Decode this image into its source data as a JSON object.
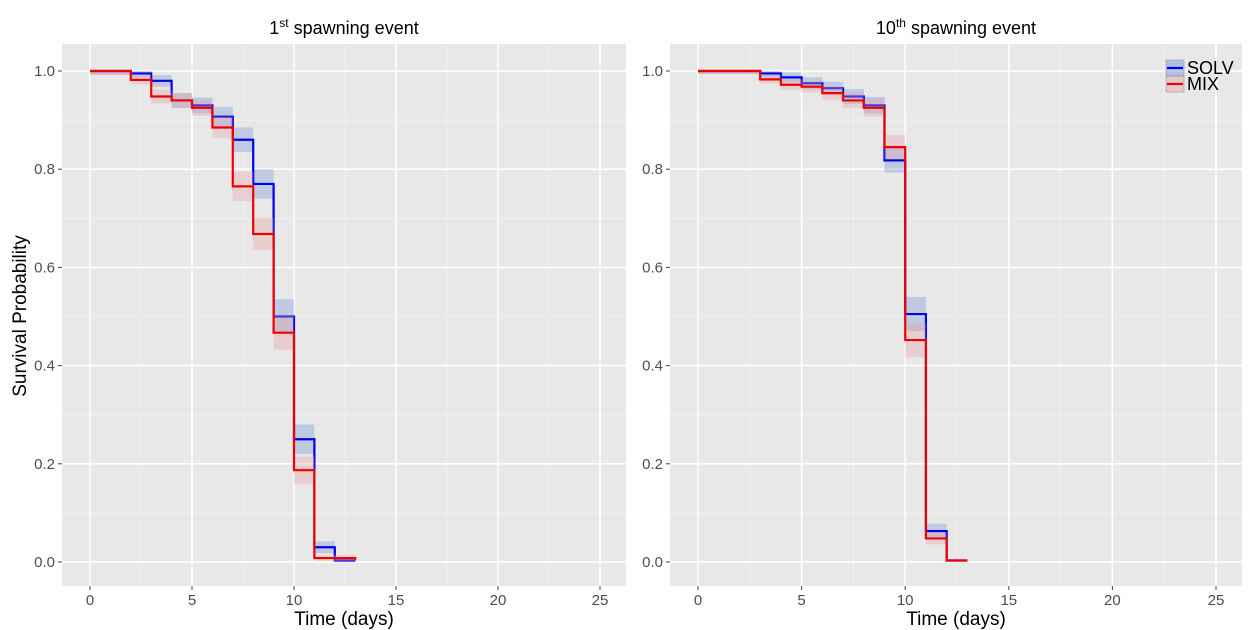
{
  "figure": {
    "ylabel": "Survival Probability",
    "legend": {
      "placement": "top-right of right panel",
      "entries": [
        {
          "label": "SOLV",
          "color": "#0000ee"
        },
        {
          "label": "MIX",
          "color": "#ee0000"
        }
      ]
    }
  },
  "chart_data": [
    {
      "type": "line",
      "step": true,
      "title": {
        "base": "1",
        "sup": "st",
        "rest": " spawning event"
      },
      "xlabel": "Time (days)",
      "ylabel": "Survival Probability",
      "xlim": [
        0,
        25
      ],
      "ylim": [
        0,
        1
      ],
      "xticks": [
        "0",
        "5",
        "10",
        "15",
        "20",
        "25"
      ],
      "yticks": [
        "0.0",
        "0.2",
        "0.4",
        "0.6",
        "0.8",
        "1.0"
      ],
      "grid": true,
      "series": [
        {
          "name": "SOLV",
          "color": "#0000ee",
          "band_color": "#6f8fd8",
          "x": [
            0,
            2,
            3,
            4,
            5,
            6,
            7,
            8,
            9,
            10,
            11,
            12,
            13
          ],
          "y": [
            1.0,
            0.995,
            0.98,
            0.94,
            0.93,
            0.907,
            0.86,
            0.77,
            0.5,
            0.25,
            0.03,
            0.003,
            0.003
          ],
          "ci": [
            0.008,
            0.008,
            0.012,
            0.015,
            0.016,
            0.02,
            0.025,
            0.03,
            0.035,
            0.03,
            0.012,
            0.002,
            0.002
          ]
        },
        {
          "name": "MIX",
          "color": "#ee0000",
          "band_color": "#e8a0a0",
          "x": [
            0,
            2,
            3,
            4,
            5,
            6,
            7,
            8,
            9,
            10,
            11,
            12,
            13
          ],
          "y": [
            1.0,
            0.982,
            0.948,
            0.94,
            0.925,
            0.885,
            0.765,
            0.668,
            0.467,
            0.187,
            0.008,
            0.008,
            0.003
          ],
          "ci": [
            0.008,
            0.01,
            0.014,
            0.015,
            0.016,
            0.022,
            0.03,
            0.033,
            0.035,
            0.028,
            0.006,
            0.006,
            0.002
          ]
        }
      ]
    },
    {
      "type": "line",
      "step": true,
      "title": {
        "base": "10",
        "sup": "th",
        "rest": " spawning event"
      },
      "xlabel": "Time (days)",
      "ylabel": "",
      "xlim": [
        0,
        25
      ],
      "ylim": [
        0,
        1
      ],
      "xticks": [
        "0",
        "5",
        "10",
        "15",
        "20",
        "25"
      ],
      "yticks": [
        "0.0",
        "0.2",
        "0.4",
        "0.6",
        "0.8",
        "1.0"
      ],
      "grid": true,
      "series": [
        {
          "name": "SOLV",
          "color": "#0000ee",
          "band_color": "#6f8fd8",
          "x": [
            0,
            3,
            4,
            5,
            6,
            7,
            8,
            9,
            10,
            11,
            12,
            13
          ],
          "y": [
            1.0,
            0.995,
            0.987,
            0.975,
            0.965,
            0.948,
            0.93,
            0.818,
            0.505,
            0.063,
            0.003,
            0.003
          ],
          "ci": [
            0.006,
            0.008,
            0.01,
            0.012,
            0.013,
            0.015,
            0.017,
            0.025,
            0.035,
            0.015,
            0.002,
            0.002
          ]
        },
        {
          "name": "MIX",
          "color": "#ee0000",
          "band_color": "#e8a0a0",
          "x": [
            0,
            3,
            4,
            5,
            6,
            7,
            8,
            9,
            10,
            11,
            12,
            13
          ],
          "y": [
            1.0,
            0.983,
            0.972,
            0.968,
            0.955,
            0.94,
            0.925,
            0.845,
            0.452,
            0.048,
            0.003,
            0.003
          ],
          "ci": [
            0.006,
            0.009,
            0.011,
            0.012,
            0.014,
            0.016,
            0.018,
            0.025,
            0.035,
            0.012,
            0.002,
            0.002
          ]
        }
      ]
    }
  ]
}
